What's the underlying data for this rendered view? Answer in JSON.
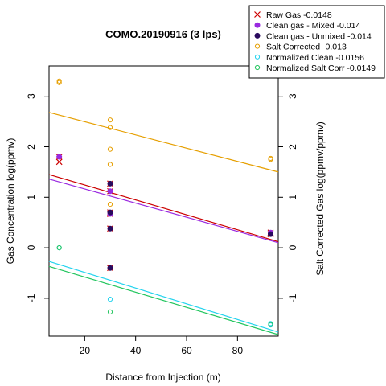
{
  "chart_data": {
    "type": "scatter",
    "title": "COMO.20190916 (3 lps)",
    "xlabel": "Distance from Injection (m)",
    "ylabel_left": "Gas Concentration log(ppmv)",
    "ylabel_right": "Salt Corrected Gas log(ppmv/ppmv)",
    "xlim": [
      6,
      96
    ],
    "ylim": [
      -1.75,
      3.6
    ],
    "xticks": [
      20,
      40,
      60,
      80
    ],
    "yticks": [
      -1,
      0,
      1,
      2,
      3
    ],
    "legend_position": "top-right",
    "series": [
      {
        "name": "Raw Gas -0.0148",
        "marker": "x",
        "color": "#cc0000",
        "points": [
          [
            10,
            1.8
          ],
          [
            10,
            1.7
          ],
          [
            30,
            1.27
          ],
          [
            30,
            1.12
          ],
          [
            30,
            0.7
          ],
          [
            30,
            0.67
          ],
          [
            30,
            0.38
          ],
          [
            30,
            -0.4
          ],
          [
            93,
            0.3
          ],
          [
            93,
            0.27
          ]
        ],
        "fit": {
          "x": [
            6,
            96
          ],
          "y": [
            1.45,
            0.12
          ]
        }
      },
      {
        "name": "Clean gas - Mixed -0.014",
        "marker": "filled-circle",
        "color": "#9a2ae0",
        "points": [
          [
            10,
            1.8
          ],
          [
            30,
            1.12
          ],
          [
            30,
            0.67
          ],
          [
            93,
            0.3
          ]
        ],
        "fit": {
          "x": [
            6,
            96
          ],
          "y": [
            1.36,
            0.1
          ]
        }
      },
      {
        "name": "Clean gas - Unmixed -0.014",
        "marker": "filled-circle",
        "color": "#2a0a5e",
        "points": [
          [
            30,
            1.27
          ],
          [
            30,
            0.7
          ],
          [
            30,
            0.38
          ],
          [
            30,
            -0.4
          ],
          [
            93,
            0.27
          ]
        ],
        "fit": null
      },
      {
        "name": "Salt Corrected -0.013",
        "marker": "open-circle",
        "color": "#e69f00",
        "points": [
          [
            10,
            3.3
          ],
          [
            10,
            3.27
          ],
          [
            30,
            2.53
          ],
          [
            30,
            2.38
          ],
          [
            30,
            1.95
          ],
          [
            30,
            1.65
          ],
          [
            30,
            0.86
          ],
          [
            93,
            1.77
          ],
          [
            93,
            1.75
          ]
        ],
        "fit": {
          "x": [
            6,
            96
          ],
          "y": [
            2.68,
            1.5
          ]
        }
      },
      {
        "name": "Normalized Clean -0.0156",
        "marker": "open-circle",
        "color": "#22d3ee",
        "points": [
          [
            10,
            0.0
          ],
          [
            30,
            -1.02
          ],
          [
            93,
            -1.5
          ],
          [
            93,
            -1.53
          ]
        ],
        "fit": {
          "x": [
            6,
            96
          ],
          "y": [
            -0.27,
            -1.67
          ]
        }
      },
      {
        "name": "Normalized Salt Corr -0.0149",
        "marker": "open-circle",
        "color": "#22c55e",
        "points": [
          [
            10,
            0.0
          ],
          [
            30,
            -1.27
          ],
          [
            93,
            -1.52
          ]
        ],
        "fit": {
          "x": [
            6,
            96
          ],
          "y": [
            -0.37,
            -1.72
          ]
        }
      }
    ]
  }
}
